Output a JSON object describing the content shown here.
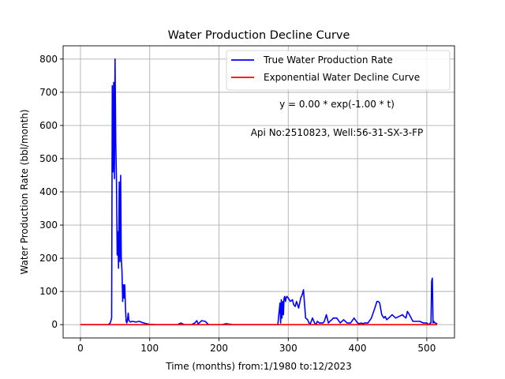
{
  "chart_data": {
    "type": "line",
    "title": "Water Production Decline Curve",
    "xlabel": "Time (months) from:1/1980 to:12/2023",
    "ylabel": "Water Production Rate (bbl/month)",
    "xlim": [
      -25,
      540
    ],
    "ylim": [
      -40,
      840
    ],
    "xticks": [
      0,
      100,
      200,
      300,
      400,
      500
    ],
    "yticks": [
      0,
      100,
      200,
      300,
      400,
      500,
      600,
      700,
      800
    ],
    "grid": true,
    "legend_position": "top-right",
    "annotations": [
      "y = 0.00 * exp(-1.00 * t)",
      "Api No:2510823, Well:56-31-SX-3-FP"
    ],
    "series": [
      {
        "name": "True Water Production Rate",
        "color": "#0000ff",
        "x": [
          0,
          30,
          40,
          43,
          45,
          46,
          47,
          48,
          49,
          50,
          51,
          52,
          53,
          54,
          55,
          56,
          57,
          58,
          59,
          60,
          61,
          62,
          63,
          64,
          65,
          66,
          67,
          68,
          69,
          70,
          72,
          75,
          80,
          85,
          90,
          95,
          100,
          110,
          120,
          130,
          140,
          145,
          150,
          160,
          165,
          168,
          170,
          175,
          180,
          185,
          190,
          200,
          205,
          210,
          220,
          230,
          240,
          250,
          260,
          270,
          280,
          285,
          288,
          289,
          290,
          291,
          292,
          293,
          294,
          295,
          296,
          297,
          298,
          300,
          303,
          306,
          308,
          310,
          312,
          315,
          318,
          320,
          322,
          325,
          328,
          330,
          332,
          334,
          335,
          338,
          340,
          342,
          345,
          350,
          352,
          355,
          358,
          360,
          363,
          365,
          370,
          375,
          380,
          385,
          390,
          395,
          400,
          403,
          405,
          408,
          410,
          415,
          420,
          425,
          428,
          430,
          432,
          435,
          438,
          440,
          442,
          445,
          450,
          455,
          460,
          465,
          467,
          470,
          472,
          475,
          480,
          485,
          490,
          495,
          500,
          503,
          505,
          506,
          507,
          508,
          509,
          510,
          512,
          515
        ],
        "y": [
          0,
          0,
          0,
          5,
          20,
          720,
          460,
          730,
          440,
          800,
          550,
          440,
          210,
          280,
          170,
          430,
          190,
          450,
          200,
          160,
          70,
          120,
          80,
          120,
          50,
          10,
          5,
          15,
          35,
          12,
          8,
          10,
          8,
          10,
          6,
          3,
          1,
          0,
          0,
          0,
          0,
          5,
          0,
          0,
          5,
          12,
          2,
          12,
          10,
          0,
          0,
          0,
          0,
          3,
          0,
          0,
          0,
          0,
          0,
          0,
          0,
          0,
          65,
          5,
          75,
          20,
          70,
          30,
          80,
          85,
          70,
          80,
          85,
          80,
          70,
          75,
          60,
          55,
          70,
          50,
          80,
          90,
          105,
          20,
          15,
          5,
          3,
          15,
          20,
          5,
          0,
          10,
          5,
          5,
          10,
          30,
          5,
          10,
          15,
          20,
          20,
          5,
          15,
          5,
          5,
          20,
          5,
          3,
          5,
          3,
          5,
          5,
          20,
          50,
          70,
          70,
          65,
          30,
          20,
          25,
          15,
          20,
          30,
          20,
          25,
          30,
          25,
          20,
          40,
          30,
          10,
          10,
          10,
          5,
          5,
          0,
          5,
          5,
          130,
          140,
          5,
          10,
          5,
          3
        ]
      },
      {
        "name": "Exponential Water Decline Curve",
        "color": "#ff0000",
        "x": [
          0,
          515
        ],
        "y": [
          0,
          0
        ]
      }
    ]
  }
}
